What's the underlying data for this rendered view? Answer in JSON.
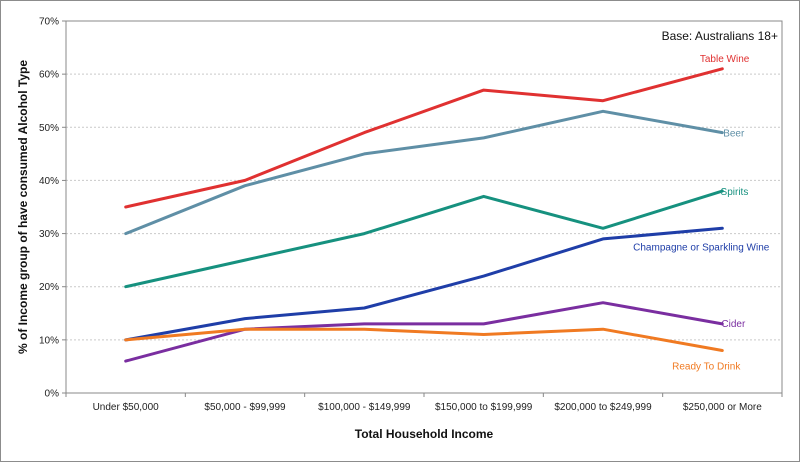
{
  "chart_data": {
    "type": "line",
    "title": "",
    "annotation": "Base: Australians  18+",
    "xlabel": "Total Household Income",
    "ylabel": "% of Income group of have consumed Alcohol Type",
    "ylim": [
      0,
      70
    ],
    "yticks": [
      "0%",
      "10%",
      "20%",
      "30%",
      "40%",
      "50%",
      "60%",
      "70%"
    ],
    "grid": true,
    "categories": [
      "Under $50,000",
      "$50,000 - $99,999",
      "$100,000 - $149,999",
      "$150,000 to $199,999",
      "$200,000 to $249,999",
      "$250,000 or More"
    ],
    "series": [
      {
        "name": "Table Wine",
        "color": "#e03131",
        "values": [
          35,
          40,
          49,
          57,
          55,
          61
        ]
      },
      {
        "name": "Beer",
        "color": "#5f8fa6",
        "values": [
          30,
          39,
          45,
          48,
          53,
          49
        ]
      },
      {
        "name": "Spirits",
        "color": "#16917f",
        "values": [
          20,
          25,
          30,
          37,
          31,
          38
        ]
      },
      {
        "name": "Champagne or Sparkling Wine",
        "color": "#1f3ea8",
        "values": [
          10,
          14,
          16,
          22,
          29,
          31
        ]
      },
      {
        "name": "Cider",
        "color": "#7a2ea0",
        "values": [
          6,
          12,
          13,
          13,
          17,
          13
        ]
      },
      {
        "name": "Ready To Drink",
        "color": "#f07a22",
        "values": [
          10,
          12,
          12,
          11,
          12,
          8
        ]
      }
    ]
  }
}
